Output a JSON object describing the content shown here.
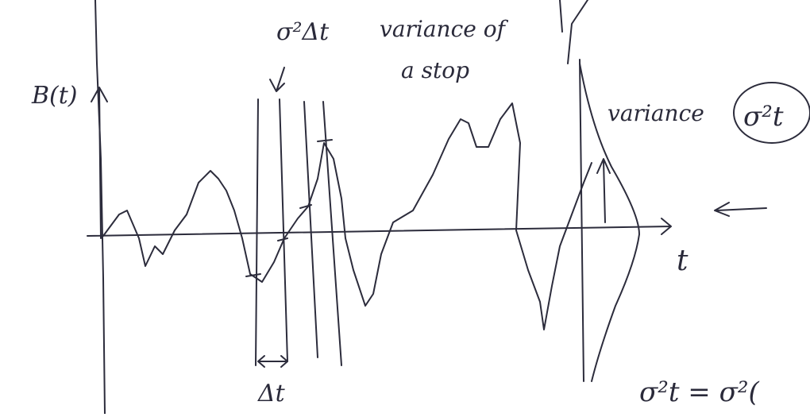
{
  "labels": {
    "y_axis": "B(t)",
    "x_axis": "t",
    "step_variance": "σ²Δt",
    "step_variance_note_line1": "variance of",
    "step_variance_note_line2": "a stop",
    "variance_label": "variance",
    "variance_value": "σ²t",
    "delta_t": "Δt",
    "equation": "σ²t = σ²("
  }
}
